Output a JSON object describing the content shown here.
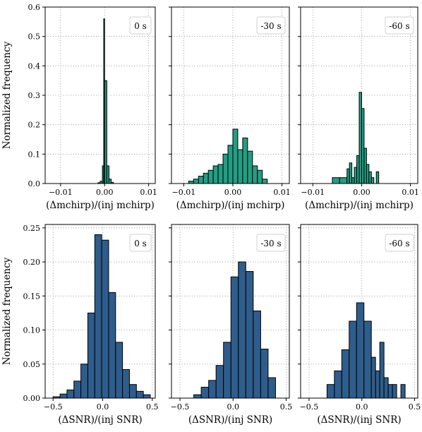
{
  "colors": {
    "mchirp": "#229e84",
    "snr": "#2e5d8c",
    "edge": "#000000",
    "grid": "#9a9a9a"
  },
  "chart_data": [
    {
      "type": "bar",
      "row": "mchirp",
      "col": 0,
      "label": "0 s",
      "xlabel": "(Δmchirp)/(inj mchirp)",
      "ylabel": "Normalized frequency",
      "xlim": [
        -0.0135,
        0.0115
      ],
      "ylim": [
        0,
        0.6
      ],
      "xticks": [
        -0.01,
        0.0,
        0.01
      ],
      "xtick_labels": [
        "−0.01",
        "0.00",
        "0.01"
      ],
      "yticks": [
        0,
        0.1,
        0.2,
        0.3,
        0.4,
        0.5,
        0.6
      ],
      "ytick_labels": [
        "0.0",
        "0.1",
        "0.2",
        "0.3",
        "0.4",
        "0.5",
        "0.6"
      ],
      "bin_edges": [
        -0.0015,
        -0.001,
        -0.0005,
        -0.0002,
        0.0,
        0.0005,
        0.001,
        0.0015,
        0.002
      ],
      "values": [
        0.003,
        0.008,
        0.06,
        0.56,
        0.35,
        0.06,
        0.015,
        0.004
      ]
    },
    {
      "type": "bar",
      "row": "mchirp",
      "col": 1,
      "label": "-30 s",
      "xlabel": "(Δmchirp)/(inj mchirp)",
      "ylabel": "",
      "xlim": [
        -0.0125,
        0.0115
      ],
      "ylim": [
        0,
        0.6
      ],
      "xticks": [
        -0.01,
        0.0,
        0.01
      ],
      "xtick_labels": [
        "−0.01",
        "0.00",
        "0.01"
      ],
      "yticks": [
        0,
        0.1,
        0.2,
        0.3,
        0.4,
        0.5,
        0.6
      ],
      "ytick_labels": [],
      "bin_edges": [
        -0.009,
        -0.008,
        -0.007,
        -0.006,
        -0.005,
        -0.004,
        -0.003,
        -0.002,
        -0.001,
        0.0,
        0.001,
        0.002,
        0.003,
        0.004,
        0.005,
        0.006,
        0.007
      ],
      "values": [
        0.008,
        0.015,
        0.025,
        0.035,
        0.045,
        0.06,
        0.065,
        0.1,
        0.13,
        0.185,
        0.115,
        0.155,
        0.11,
        0.06,
        0.045,
        0.015
      ]
    },
    {
      "type": "bar",
      "row": "mchirp",
      "col": 2,
      "label": "-60 s",
      "xlabel": "(Δmchirp)/(inj mchirp)",
      "ylabel": "",
      "xlim": [
        -0.0125,
        0.0115
      ],
      "ylim": [
        0,
        0.6
      ],
      "xticks": [
        -0.01,
        0.0,
        0.01
      ],
      "xtick_labels": [
        "−0.01",
        "0.00",
        "0.01"
      ],
      "yticks": [
        0,
        0.1,
        0.2,
        0.3,
        0.4,
        0.5,
        0.6
      ],
      "ytick_labels": [],
      "bin_edges": [
        -0.006,
        -0.0045,
        -0.003,
        -0.0025,
        -0.002,
        -0.0015,
        -0.001,
        -0.0005,
        0.0,
        0.0005,
        0.001,
        0.0015,
        0.002,
        0.0025,
        0.003,
        0.0035
      ],
      "values": [
        0.02,
        0.02,
        0.05,
        0.07,
        0.02,
        0.055,
        0.095,
        0.31,
        0.255,
        0.12,
        0.065,
        0.04,
        0.02,
        0.0,
        0.04
      ]
    },
    {
      "type": "bar",
      "row": "snr",
      "col": 0,
      "label": "0 s",
      "xlabel": "(ΔSNR)/(inj SNR)",
      "ylabel": "Normalized frequency",
      "xlim": [
        -0.58,
        0.53
      ],
      "ylim": [
        0,
        0.255
      ],
      "xticks": [
        -0.5,
        0.0,
        0.5
      ],
      "xtick_labels": [
        "−0.5",
        "0.0",
        "0.5"
      ],
      "yticks": [
        0,
        0.05,
        0.1,
        0.15,
        0.2,
        0.25
      ],
      "ytick_labels": [
        "0.00",
        "0.05",
        "0.10",
        "0.15",
        "0.20",
        "0.25"
      ],
      "bin_edges": [
        -0.5,
        -0.43,
        -0.36,
        -0.29,
        -0.22,
        -0.15,
        -0.08,
        -0.01,
        0.06,
        0.13,
        0.2,
        0.27,
        0.34,
        0.41,
        0.48
      ],
      "values": [
        0.002,
        0.006,
        0.012,
        0.025,
        0.05,
        0.125,
        0.24,
        0.232,
        0.155,
        0.082,
        0.042,
        0.02,
        0.01,
        0.005
      ]
    },
    {
      "type": "bar",
      "row": "snr",
      "col": 1,
      "label": "-30 s",
      "xlabel": "(ΔSNR)/(inj SNR)",
      "ylabel": "",
      "xlim": [
        -0.58,
        0.53
      ],
      "ylim": [
        0,
        0.255
      ],
      "xticks": [
        -0.5,
        0.0,
        0.5
      ],
      "xtick_labels": [
        "−0.5",
        "0.0",
        "0.5"
      ],
      "yticks": [
        0,
        0.05,
        0.1,
        0.15,
        0.2,
        0.25
      ],
      "ytick_labels": [],
      "bin_edges": [
        -0.37,
        -0.3,
        -0.23,
        -0.16,
        -0.09,
        -0.02,
        0.05,
        0.12,
        0.19,
        0.26,
        0.33,
        0.4
      ],
      "values": [
        0.005,
        0.016,
        0.026,
        0.048,
        0.082,
        0.178,
        0.2,
        0.186,
        0.128,
        0.072,
        0.03
      ]
    },
    {
      "type": "bar",
      "row": "snr",
      "col": 2,
      "label": "-60 s",
      "xlabel": "(ΔSNR)/(inj SNR)",
      "ylabel": "",
      "xlim": [
        -0.58,
        0.53
      ],
      "ylim": [
        0,
        0.255
      ],
      "xticks": [
        -0.5,
        0.0,
        0.5
      ],
      "xtick_labels": [
        "−0.5",
        "0.0",
        "0.5"
      ],
      "yticks": [
        0,
        0.05,
        0.1,
        0.15,
        0.2,
        0.25
      ],
      "ytick_labels": [],
      "bin_edges": [
        -0.33,
        -0.26,
        -0.19,
        -0.12,
        -0.05,
        0.02,
        0.09,
        0.13,
        0.17,
        0.21,
        0.25,
        0.29,
        0.33,
        0.37,
        0.41
      ],
      "values": [
        0.02,
        0.04,
        0.071,
        0.113,
        0.14,
        0.113,
        0.06,
        0.04,
        0.082,
        0.03,
        0.02,
        0.02,
        0.0,
        0.02
      ]
    }
  ]
}
